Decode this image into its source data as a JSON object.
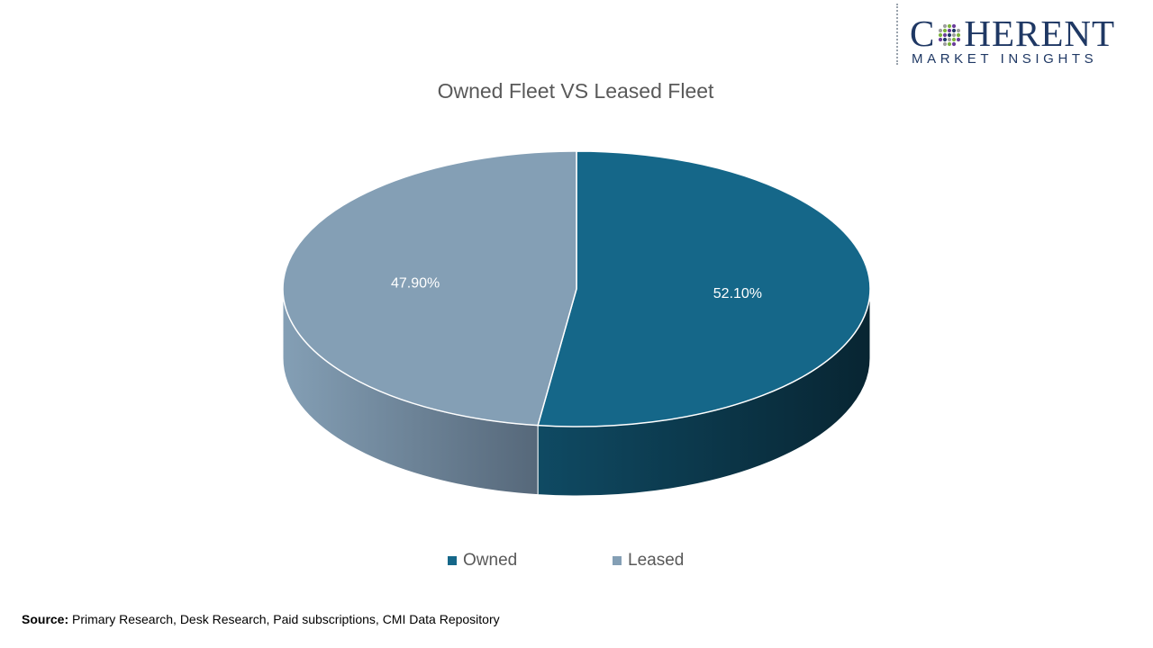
{
  "logo": {
    "word_pre": "C",
    "word_post": "HERENT",
    "subline": "MARKET INSIGHTS",
    "colors": [
      "#1f3864",
      "#9e9e9e",
      "#7db53c",
      "#6a3d9a"
    ]
  },
  "chart_data": {
    "type": "pie",
    "title": "Owned Fleet VS Leased Fleet",
    "style": "3d",
    "slices": [
      {
        "name": "Owned",
        "value": 52.1,
        "label": "52.10%",
        "color": "#156789"
      },
      {
        "name": "Leased",
        "value": 47.9,
        "label": "47.90%",
        "color": "#849fb5"
      }
    ],
    "legend": {
      "placement": "bottom"
    }
  },
  "source": {
    "label": "Source:",
    "text": " Primary Research, Desk Research, Paid subscriptions, CMI Data Repository"
  }
}
